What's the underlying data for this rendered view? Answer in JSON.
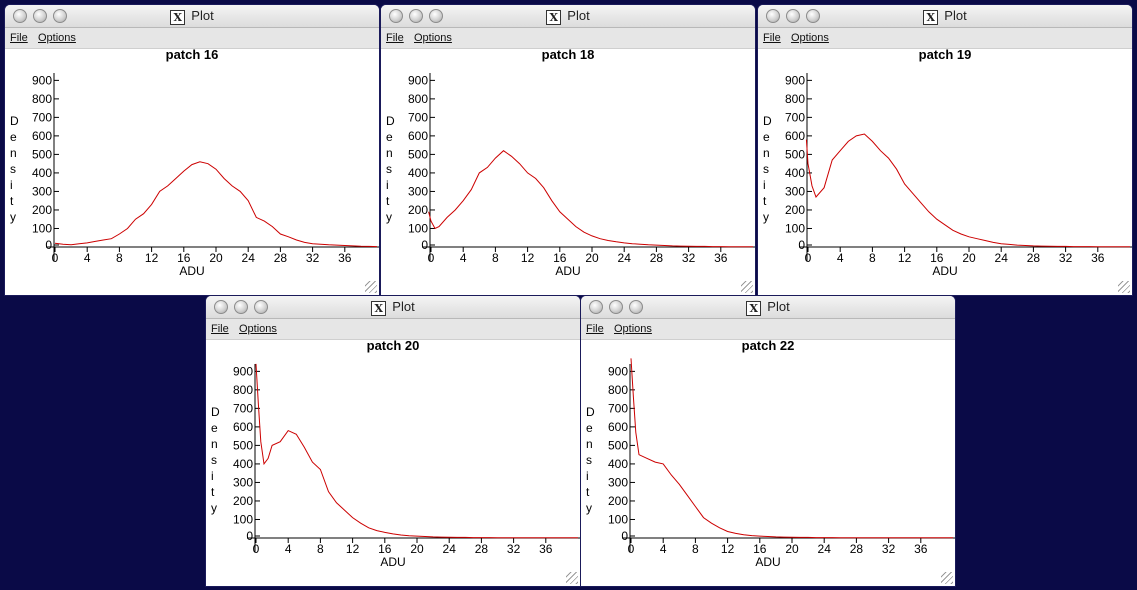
{
  "windows": [
    {
      "window_title": "Plot",
      "menu": {
        "file": "File",
        "options": "Options"
      },
      "chart": {
        "title": "patch 16",
        "xlabel": "ADU",
        "ylabel": "Density",
        "yticks": [
          "0",
          "100",
          "200",
          "300",
          "400",
          "500",
          "600",
          "700",
          "800",
          "900"
        ],
        "xticks": [
          "0",
          "4",
          "8",
          "12",
          "16",
          "20",
          "24",
          "28",
          "32",
          "36"
        ],
        "xlim": [
          -2,
          40
        ],
        "ylim": [
          0,
          960
        ],
        "points": [
          [
            0,
            20
          ],
          [
            1,
            15
          ],
          [
            2,
            12
          ],
          [
            3,
            18
          ],
          [
            4,
            22
          ],
          [
            5,
            30
          ],
          [
            6,
            38
          ],
          [
            7,
            45
          ],
          [
            8,
            70
          ],
          [
            9,
            100
          ],
          [
            10,
            150
          ],
          [
            11,
            180
          ],
          [
            12,
            230
          ],
          [
            13,
            300
          ],
          [
            14,
            330
          ],
          [
            15,
            370
          ],
          [
            16,
            410
          ],
          [
            17,
            445
          ],
          [
            18,
            460
          ],
          [
            19,
            450
          ],
          [
            20,
            420
          ],
          [
            21,
            370
          ],
          [
            22,
            330
          ],
          [
            23,
            300
          ],
          [
            24,
            250
          ],
          [
            25,
            160
          ],
          [
            26,
            140
          ],
          [
            27,
            110
          ],
          [
            28,
            70
          ],
          [
            29,
            55
          ],
          [
            30,
            38
          ],
          [
            31,
            25
          ],
          [
            32,
            18
          ],
          [
            33,
            15
          ],
          [
            34,
            12
          ],
          [
            35,
            10
          ],
          [
            36,
            8
          ],
          [
            37,
            6
          ],
          [
            38,
            4
          ],
          [
            39,
            3
          ],
          [
            40,
            2
          ]
        ]
      }
    },
    {
      "window_title": "Plot",
      "menu": {
        "file": "File",
        "options": "Options"
      },
      "chart": {
        "title": "patch 18",
        "xlabel": "ADU",
        "ylabel": "Density",
        "yticks": [
          "0",
          "100",
          "200",
          "300",
          "400",
          "500",
          "600",
          "700",
          "800",
          "900"
        ],
        "xticks": [
          "0",
          "4",
          "8",
          "12",
          "16",
          "20",
          "24",
          "28",
          "32",
          "36"
        ],
        "xlim": [
          -2,
          40
        ],
        "ylim": [
          0,
          960
        ],
        "points": [
          [
            -0.3,
            190
          ],
          [
            0,
            140
          ],
          [
            0.5,
            100
          ],
          [
            1,
            110
          ],
          [
            2,
            160
          ],
          [
            3,
            200
          ],
          [
            4,
            250
          ],
          [
            5,
            310
          ],
          [
            6,
            400
          ],
          [
            7,
            430
          ],
          [
            8,
            480
          ],
          [
            9,
            520
          ],
          [
            10,
            490
          ],
          [
            11,
            450
          ],
          [
            12,
            400
          ],
          [
            13,
            370
          ],
          [
            14,
            320
          ],
          [
            15,
            250
          ],
          [
            16,
            190
          ],
          [
            17,
            150
          ],
          [
            18,
            110
          ],
          [
            19,
            80
          ],
          [
            20,
            60
          ],
          [
            21,
            45
          ],
          [
            22,
            35
          ],
          [
            23,
            28
          ],
          [
            24,
            22
          ],
          [
            25,
            18
          ],
          [
            26,
            15
          ],
          [
            27,
            12
          ],
          [
            28,
            10
          ],
          [
            29,
            8
          ],
          [
            30,
            6
          ],
          [
            31,
            5
          ],
          [
            32,
            4
          ],
          [
            33,
            3
          ],
          [
            34,
            3
          ],
          [
            35,
            2
          ],
          [
            36,
            2
          ],
          [
            37,
            1
          ],
          [
            38,
            1
          ],
          [
            39,
            1
          ],
          [
            40,
            1
          ]
        ]
      }
    },
    {
      "window_title": "Plot",
      "menu": {
        "file": "File",
        "options": "Options"
      },
      "chart": {
        "title": "patch 19",
        "xlabel": "ADU",
        "ylabel": "Density",
        "yticks": [
          "0",
          "100",
          "200",
          "300",
          "400",
          "500",
          "600",
          "700",
          "800",
          "900"
        ],
        "xticks": [
          "0",
          "4",
          "8",
          "12",
          "16",
          "20",
          "24",
          "28",
          "32",
          "36"
        ],
        "xlim": [
          -2,
          40
        ],
        "ylim": [
          0,
          960
        ],
        "points": [
          [
            -0.2,
            580
          ],
          [
            0,
            450
          ],
          [
            0.5,
            330
          ],
          [
            1,
            270
          ],
          [
            2,
            320
          ],
          [
            3,
            470
          ],
          [
            4,
            520
          ],
          [
            5,
            570
          ],
          [
            6,
            600
          ],
          [
            7,
            610
          ],
          [
            8,
            570
          ],
          [
            9,
            520
          ],
          [
            10,
            480
          ],
          [
            11,
            420
          ],
          [
            12,
            340
          ],
          [
            13,
            290
          ],
          [
            14,
            240
          ],
          [
            15,
            190
          ],
          [
            16,
            150
          ],
          [
            17,
            120
          ],
          [
            18,
            90
          ],
          [
            19,
            70
          ],
          [
            20,
            55
          ],
          [
            21,
            45
          ],
          [
            22,
            35
          ],
          [
            23,
            25
          ],
          [
            24,
            18
          ],
          [
            25,
            14
          ],
          [
            26,
            10
          ],
          [
            27,
            8
          ],
          [
            28,
            6
          ],
          [
            29,
            5
          ],
          [
            30,
            4
          ],
          [
            31,
            3
          ],
          [
            32,
            3
          ],
          [
            33,
            2
          ],
          [
            34,
            2
          ],
          [
            35,
            2
          ],
          [
            36,
            1
          ],
          [
            37,
            1
          ],
          [
            38,
            1
          ],
          [
            39,
            1
          ],
          [
            40,
            1
          ]
        ]
      }
    },
    {
      "window_title": "Plot",
      "menu": {
        "file": "File",
        "options": "Options"
      },
      "chart": {
        "title": "patch 20",
        "xlabel": "ADU",
        "ylabel": "Density",
        "yticks": [
          "0",
          "100",
          "200",
          "300",
          "400",
          "500",
          "600",
          "700",
          "800",
          "900"
        ],
        "xticks": [
          "0",
          "4",
          "8",
          "12",
          "16",
          "20",
          "24",
          "28",
          "32",
          "36"
        ],
        "xlim": [
          -2,
          40
        ],
        "ylim": [
          0,
          960
        ],
        "points": [
          [
            0,
            940
          ],
          [
            0.3,
            720
          ],
          [
            0.6,
            520
          ],
          [
            1,
            400
          ],
          [
            1.5,
            430
          ],
          [
            2,
            500
          ],
          [
            3,
            520
          ],
          [
            4,
            580
          ],
          [
            5,
            560
          ],
          [
            6,
            490
          ],
          [
            7,
            410
          ],
          [
            8,
            370
          ],
          [
            9,
            250
          ],
          [
            10,
            190
          ],
          [
            11,
            150
          ],
          [
            12,
            110
          ],
          [
            13,
            80
          ],
          [
            14,
            55
          ],
          [
            15,
            40
          ],
          [
            16,
            30
          ],
          [
            17,
            22
          ],
          [
            18,
            16
          ],
          [
            19,
            12
          ],
          [
            20,
            10
          ],
          [
            21,
            8
          ],
          [
            22,
            6
          ],
          [
            23,
            5
          ],
          [
            24,
            4
          ],
          [
            25,
            3
          ],
          [
            26,
            3
          ],
          [
            27,
            2
          ],
          [
            28,
            2
          ],
          [
            29,
            2
          ],
          [
            30,
            1
          ],
          [
            32,
            1
          ],
          [
            34,
            1
          ],
          [
            36,
            1
          ],
          [
            38,
            1
          ],
          [
            40,
            1
          ]
        ]
      }
    },
    {
      "window_title": "Plot",
      "menu": {
        "file": "File",
        "options": "Options"
      },
      "chart": {
        "title": "patch 22",
        "xlabel": "ADU",
        "ylabel": "Density",
        "yticks": [
          "0",
          "100",
          "200",
          "300",
          "400",
          "500",
          "600",
          "700",
          "800",
          "900"
        ],
        "xticks": [
          "0",
          "4",
          "8",
          "12",
          "16",
          "20",
          "24",
          "28",
          "32",
          "36"
        ],
        "xlim": [
          -2,
          40
        ],
        "ylim": [
          0,
          960
        ],
        "points": [
          [
            0,
            970
          ],
          [
            0.3,
            760
          ],
          [
            0.6,
            570
          ],
          [
            1,
            450
          ],
          [
            2,
            430
          ],
          [
            3,
            410
          ],
          [
            4,
            400
          ],
          [
            5,
            340
          ],
          [
            6,
            290
          ],
          [
            7,
            230
          ],
          [
            8,
            170
          ],
          [
            9,
            110
          ],
          [
            10,
            80
          ],
          [
            11,
            55
          ],
          [
            12,
            35
          ],
          [
            13,
            25
          ],
          [
            14,
            18
          ],
          [
            15,
            13
          ],
          [
            16,
            10
          ],
          [
            17,
            8
          ],
          [
            18,
            6
          ],
          [
            19,
            5
          ],
          [
            20,
            4
          ],
          [
            21,
            3
          ],
          [
            22,
            3
          ],
          [
            23,
            2
          ],
          [
            24,
            2
          ],
          [
            25,
            2
          ],
          [
            26,
            1
          ],
          [
            28,
            1
          ],
          [
            30,
            1
          ],
          [
            32,
            1
          ],
          [
            34,
            1
          ],
          [
            36,
            1
          ],
          [
            38,
            1
          ],
          [
            40,
            1
          ]
        ]
      }
    }
  ],
  "colors": {
    "curve": "#cc0000",
    "axis": "#000000",
    "desktop": "#0a0a47"
  }
}
